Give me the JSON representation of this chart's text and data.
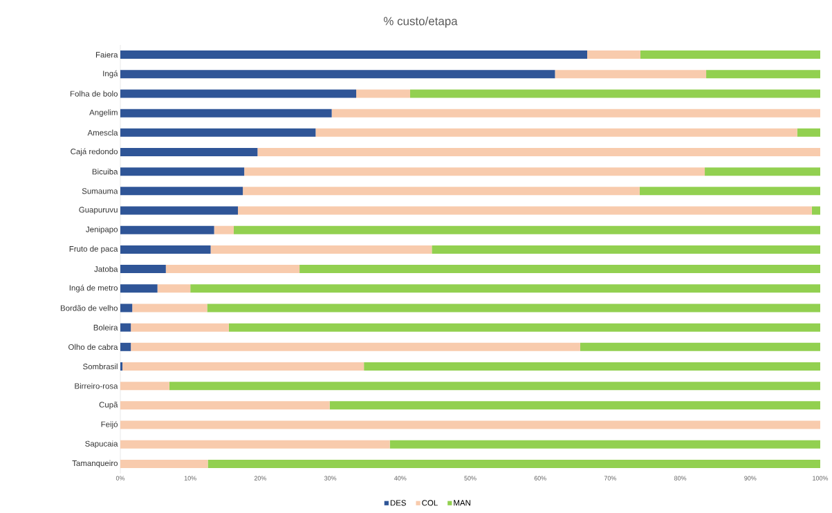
{
  "chart_data": {
    "type": "bar",
    "orientation": "horizontal",
    "stacked": true,
    "title": "% custo/etapa",
    "categories": [
      "Faiera",
      "Ingá",
      "Folha de bolo",
      "Angelim",
      "Amescla",
      "Cajá redondo",
      "Bicuiba",
      "Sumauma",
      "Guapuruvu",
      "Jenipapo",
      "Fruto de paca",
      "Jatoba",
      "Ingá de metro",
      "Bordão de velho",
      "Boleira",
      "Olho de cabra",
      "Sombrasil",
      "Birreiro-rosa",
      "Cupã",
      "Feijó",
      "Sapucaia",
      "Tamanqueiro"
    ],
    "series": [
      {
        "name": "DES",
        "color": "#2f5597",
        "values": [
          66.7,
          62.1,
          33.7,
          30.2,
          27.9,
          19.6,
          17.7,
          17.5,
          16.8,
          13.4,
          12.9,
          6.5,
          5.3,
          1.7,
          1.5,
          1.5,
          0.3,
          0,
          0,
          0,
          0,
          0
        ]
      },
      {
        "name": "COL",
        "color": "#f8cbad",
        "values": [
          7.6,
          21.6,
          7.7,
          69.8,
          68.8,
          80.4,
          65.8,
          56.7,
          82.0,
          2.8,
          31.6,
          19.1,
          4.7,
          10.7,
          14.0,
          64.2,
          34.5,
          7.0,
          29.9,
          100,
          38.5,
          12.5
        ]
      },
      {
        "name": "MAN",
        "color": "#92d050",
        "values": [
          25.7,
          16.3,
          58.6,
          0,
          3.3,
          0,
          16.5,
          25.8,
          1.2,
          83.8,
          55.5,
          74.4,
          90.0,
          87.6,
          84.5,
          34.3,
          65.2,
          93.0,
          70.1,
          0,
          61.5,
          87.5
        ]
      }
    ],
    "xlim": [
      0,
      100
    ],
    "xticks": [
      {
        "value": 0,
        "label": "0%"
      },
      {
        "value": 10,
        "label": "10%"
      },
      {
        "value": 20,
        "label": "20%"
      },
      {
        "value": 30,
        "label": "30%"
      },
      {
        "value": 40,
        "label": "40%"
      },
      {
        "value": 50,
        "label": "50%"
      },
      {
        "value": 60,
        "label": "60%"
      },
      {
        "value": 70,
        "label": "70%"
      },
      {
        "value": 80,
        "label": "80%"
      },
      {
        "value": 90,
        "label": "90%"
      },
      {
        "value": 100,
        "label": "100%"
      }
    ],
    "legend": "bottom"
  }
}
